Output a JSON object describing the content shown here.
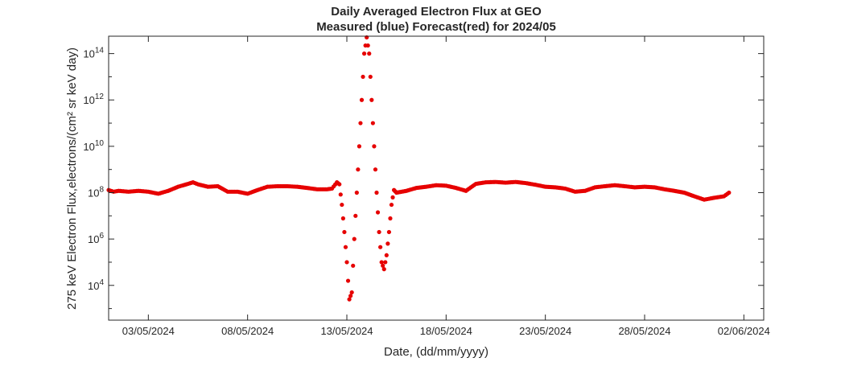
{
  "chart_data": {
    "type": "scatter",
    "title": "Daily Averaged Electron Flux at GEO",
    "subtitle": "Measured (blue) Forecast(red) for 2024/05",
    "xlabel": "Date, (dd/mm/yyyy)",
    "ylabel": "275 keV Electron Flux,electrons/(cm² sr keV day)",
    "x_range": [
      "2024-05-01T00:00",
      "2024-06-03T00:00"
    ],
    "y_log_range": [
      2.5,
      14.75
    ],
    "y_scale": "log10",
    "grid": false,
    "x_ticks": [
      {
        "date": "2024-05-03",
        "label": "03/05/2024"
      },
      {
        "date": "2024-05-08",
        "label": "08/05/2024"
      },
      {
        "date": "2024-05-13",
        "label": "13/05/2024"
      },
      {
        "date": "2024-05-18",
        "label": "18/05/2024"
      },
      {
        "date": "2024-05-23",
        "label": "23/05/2024"
      },
      {
        "date": "2024-05-28",
        "label": "28/05/2024"
      },
      {
        "date": "2024-06-02",
        "label": "02/06/2024"
      }
    ],
    "y_ticks": [
      {
        "exp": 4,
        "base": "10",
        "sup": "4"
      },
      {
        "exp": 6,
        "base": "10",
        "sup": "6"
      },
      {
        "exp": 8,
        "base": "10",
        "sup": "8"
      },
      {
        "exp": 10,
        "base": "10",
        "sup": "10"
      },
      {
        "exp": 12,
        "base": "10",
        "sup": "12"
      },
      {
        "exp": 14,
        "base": "10",
        "sup": "14"
      }
    ],
    "series": [
      {
        "color": "#e60000",
        "marker": "dot",
        "points": [
          [
            "2024-05-01T00:00",
            130000000.0
          ],
          [
            "2024-05-01T06:00",
            110000000.0
          ],
          [
            "2024-05-01T12:00",
            120000000.0
          ],
          [
            "2024-05-02T00:00",
            110000000.0
          ],
          [
            "2024-05-02T12:00",
            120000000.0
          ],
          [
            "2024-05-03T00:00",
            110000000.0
          ],
          [
            "2024-05-03T12:00",
            90000000.0
          ],
          [
            "2024-05-04T00:00",
            120000000.0
          ],
          [
            "2024-05-04T12:00",
            180000000.0
          ],
          [
            "2024-05-05T00:00",
            240000000.0
          ],
          [
            "2024-05-05T06:00",
            280000000.0
          ],
          [
            "2024-05-05T12:00",
            230000000.0
          ],
          [
            "2024-05-06T00:00",
            180000000.0
          ],
          [
            "2024-05-06T12:00",
            190000000.0
          ],
          [
            "2024-05-07T00:00",
            110000000.0
          ],
          [
            "2024-05-07T12:00",
            110000000.0
          ],
          [
            "2024-05-08T00:00",
            90000000.0
          ],
          [
            "2024-05-08T12:00",
            130000000.0
          ],
          [
            "2024-05-09T00:00",
            180000000.0
          ],
          [
            "2024-05-09T12:00",
            190000000.0
          ],
          [
            "2024-05-10T00:00",
            190000000.0
          ],
          [
            "2024-05-10T12:00",
            180000000.0
          ],
          [
            "2024-05-11T00:00",
            160000000.0
          ],
          [
            "2024-05-11T12:00",
            140000000.0
          ],
          [
            "2024-05-12T00:00",
            140000000.0
          ],
          [
            "2024-05-12T06:00",
            150000000.0
          ],
          [
            "2024-05-12T12:00",
            280000000.0
          ],
          [
            "2024-05-12T15:00",
            230000000.0
          ],
          [
            "2024-05-12T18:00",
            30000000.0
          ],
          [
            "2024-05-12T21:00",
            2000000.0
          ],
          [
            "2024-05-13T00:00",
            100000.0
          ],
          [
            "2024-05-13T03:00",
            2500.0
          ],
          [
            "2024-05-13T06:00",
            5000.0
          ],
          [
            "2024-05-13T09:00",
            1000000.0
          ],
          [
            "2024-05-13T12:00",
            100000000.0
          ],
          [
            "2024-05-13T15:00",
            10000000000.0
          ],
          [
            "2024-05-13T18:00",
            1000000000000.0
          ],
          [
            "2024-05-13T21:00",
            100000000000000.0
          ],
          [
            "2024-05-14T00:00",
            500000000000000.0
          ],
          [
            "2024-05-14T03:00",
            100000000000000.0
          ],
          [
            "2024-05-14T06:00",
            1000000000000.0
          ],
          [
            "2024-05-14T09:00",
            10000000000.0
          ],
          [
            "2024-05-14T12:00",
            100000000.0
          ],
          [
            "2024-05-14T15:00",
            2000000.0
          ],
          [
            "2024-05-14T18:00",
            100000.0
          ],
          [
            "2024-05-14T21:00",
            50000.0
          ],
          [
            "2024-05-15T00:00",
            200000.0
          ],
          [
            "2024-05-15T03:00",
            2000000.0
          ],
          [
            "2024-05-15T06:00",
            30000000.0
          ],
          [
            "2024-05-15T09:00",
            130000000.0
          ],
          [
            "2024-05-15T12:00",
            100000000.0
          ],
          [
            "2024-05-16T00:00",
            120000000.0
          ],
          [
            "2024-05-16T12:00",
            160000000.0
          ],
          [
            "2024-05-17T00:00",
            180000000.0
          ],
          [
            "2024-05-17T12:00",
            210000000.0
          ],
          [
            "2024-05-18T00:00",
            200000000.0
          ],
          [
            "2024-05-18T12:00",
            160000000.0
          ],
          [
            "2024-05-19T00:00",
            120000000.0
          ],
          [
            "2024-05-19T12:00",
            240000000.0
          ],
          [
            "2024-05-20T00:00",
            280000000.0
          ],
          [
            "2024-05-20T12:00",
            290000000.0
          ],
          [
            "2024-05-21T00:00",
            270000000.0
          ],
          [
            "2024-05-21T12:00",
            290000000.0
          ],
          [
            "2024-05-22T00:00",
            260000000.0
          ],
          [
            "2024-05-22T12:00",
            220000000.0
          ],
          [
            "2024-05-23T00:00",
            180000000.0
          ],
          [
            "2024-05-23T12:00",
            170000000.0
          ],
          [
            "2024-05-24T00:00",
            150000000.0
          ],
          [
            "2024-05-24T12:00",
            110000000.0
          ],
          [
            "2024-05-25T00:00",
            120000000.0
          ],
          [
            "2024-05-25T12:00",
            170000000.0
          ],
          [
            "2024-05-26T00:00",
            190000000.0
          ],
          [
            "2024-05-26T12:00",
            210000000.0
          ],
          [
            "2024-05-27T00:00",
            190000000.0
          ],
          [
            "2024-05-27T12:00",
            170000000.0
          ],
          [
            "2024-05-28T00:00",
            180000000.0
          ],
          [
            "2024-05-28T12:00",
            170000000.0
          ],
          [
            "2024-05-29T00:00",
            140000000.0
          ],
          [
            "2024-05-29T12:00",
            120000000.0
          ],
          [
            "2024-05-30T00:00",
            100000000.0
          ],
          [
            "2024-05-30T12:00",
            70000000.0
          ],
          [
            "2024-05-31T00:00",
            50000000.0
          ],
          [
            "2024-05-31T12:00",
            60000000.0
          ],
          [
            "2024-06-01T00:00",
            70000000.0
          ],
          [
            "2024-06-01T06:00",
            100000000.0
          ]
        ]
      }
    ]
  }
}
